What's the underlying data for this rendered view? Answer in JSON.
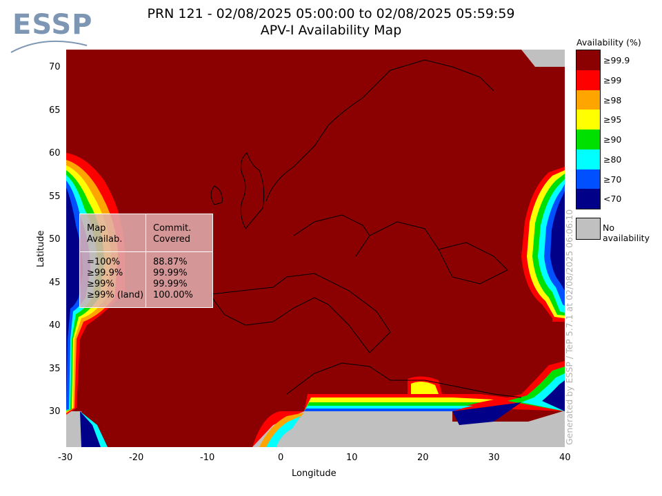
{
  "logo": {
    "text": "ESSP"
  },
  "title": {
    "line1": "PRN 121 - 02/08/2025 05:00:00 to 02/08/2025 05:59:59",
    "line2": "APV-I Availability Map"
  },
  "axes": {
    "xlabel": "Longitude",
    "ylabel": "Latitude",
    "x_ticks": [
      "-30",
      "-20",
      "-10",
      "0",
      "10",
      "20",
      "30",
      "40"
    ],
    "y_ticks": [
      "70",
      "65",
      "60",
      "55",
      "50",
      "45",
      "40",
      "35",
      "30"
    ]
  },
  "legend": {
    "title": "Availability (%)",
    "items": [
      {
        "label": "≥99.9",
        "color": "#8b0000"
      },
      {
        "label": "≥99",
        "color": "#ff0000"
      },
      {
        "label": "≥98",
        "color": "#ffa500"
      },
      {
        "label": "≥95",
        "color": "#ffff00"
      },
      {
        "label": "≥90",
        "color": "#00e000"
      },
      {
        "label": "≥80",
        "color": "#00ffff"
      },
      {
        "label": "≥70",
        "color": "#0050ff"
      },
      {
        "label": "<70",
        "color": "#000088"
      }
    ],
    "no_availability": {
      "label": "No availability",
      "color": "#c0c0c0"
    }
  },
  "stats": {
    "header_left_1": "Map",
    "header_left_2": "Availab.",
    "header_right_1": "Commit.",
    "header_right_2": "Covered",
    "rows": [
      {
        "left": "=100%",
        "right": "88.87%"
      },
      {
        "left": "≥99.9%",
        "right": "99.99%"
      },
      {
        "left": "≥99%",
        "right": "99.99%"
      },
      {
        "left": "≥99% (land)",
        "right": "100.00%"
      }
    ]
  },
  "side_note": "Generated by ESSP / TeP 5.7.1 at 02/08/2025 06:06:10"
}
